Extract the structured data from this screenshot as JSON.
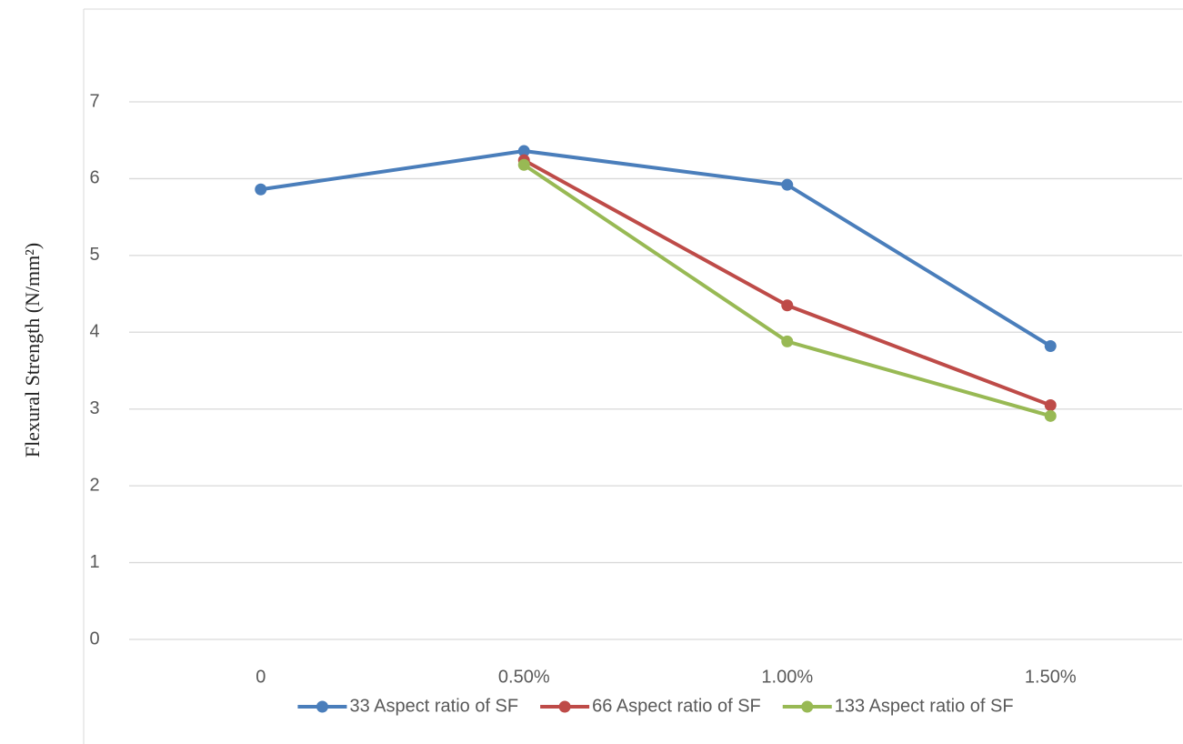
{
  "chart_data": {
    "type": "line",
    "y_label": "Flexural Strength (N/mm²)",
    "categories": [
      "0",
      "0.50%",
      "1.00%",
      "1.50%"
    ],
    "series": [
      {
        "name": "33 Aspect ratio of SF",
        "color": "#4a7ebb",
        "values": [
          5.86,
          6.36,
          5.92,
          3.82
        ]
      },
      {
        "name": "66 Aspect ratio of SF",
        "color": "#be4b48",
        "values": [
          null,
          6.24,
          4.35,
          3.05
        ]
      },
      {
        "name": "133 Aspect ratio of SF",
        "color": "#98b954",
        "values": [
          null,
          6.18,
          3.88,
          2.91
        ]
      }
    ],
    "ylim": [
      0,
      7
    ],
    "yticks": [
      0,
      1,
      2,
      3,
      4,
      5,
      6,
      7
    ],
    "grid": true,
    "legend": "bottom"
  }
}
